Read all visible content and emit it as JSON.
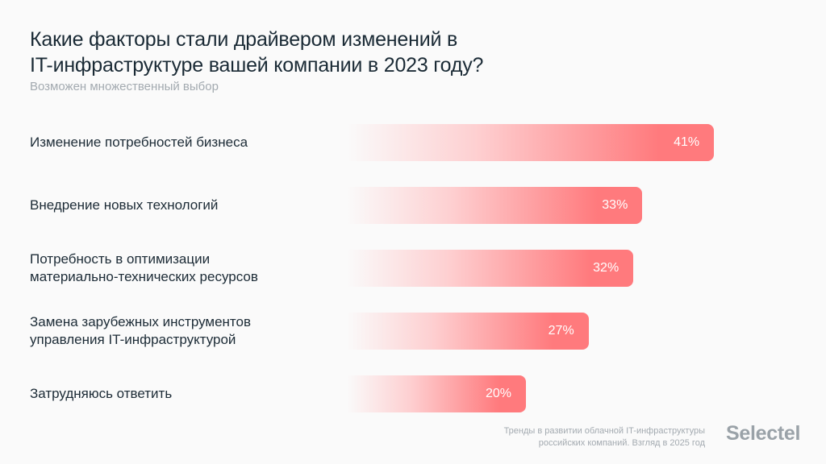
{
  "header": {
    "title_lines": [
      "Какие факторы стали драйвером изменений в",
      "IT-инфраструктуре вашей компании в 2023 году?"
    ],
    "subtitle": "Возможен множественный выбор"
  },
  "footer": {
    "source_lines": [
      "Тренды в развитии облачной IT-инфраструктуры",
      "российских компаний. Взгляд в 2025 год"
    ],
    "logo": "Selectel"
  },
  "colors": {
    "bar": "#ff7a7d",
    "text": "#1c2b36",
    "muted": "#a3aab0"
  },
  "chart_data": {
    "type": "bar",
    "orientation": "horizontal",
    "title": "Какие факторы стали драйвером изменений в IT-инфраструктуре вашей компании в 2023 году?",
    "subtitle": "Возможен множественный выбор",
    "categories": [
      [
        "Изменение потребностей бизнеса"
      ],
      [
        "Внедрение новых технологий"
      ],
      [
        "Потребность в оптимизации",
        "материально-технических ресурсов"
      ],
      [
        "Замена зарубежных инструментов",
        "управления IT-инфраструктурой"
      ],
      [
        "Затрудняюсь ответить"
      ]
    ],
    "values": [
      41,
      33,
      32,
      27,
      20
    ],
    "value_labels": [
      "41%",
      "33%",
      "32%",
      "27%",
      "20%"
    ],
    "unit": "%",
    "xlabel": "",
    "ylabel": "",
    "grid": false,
    "legend": "none"
  }
}
